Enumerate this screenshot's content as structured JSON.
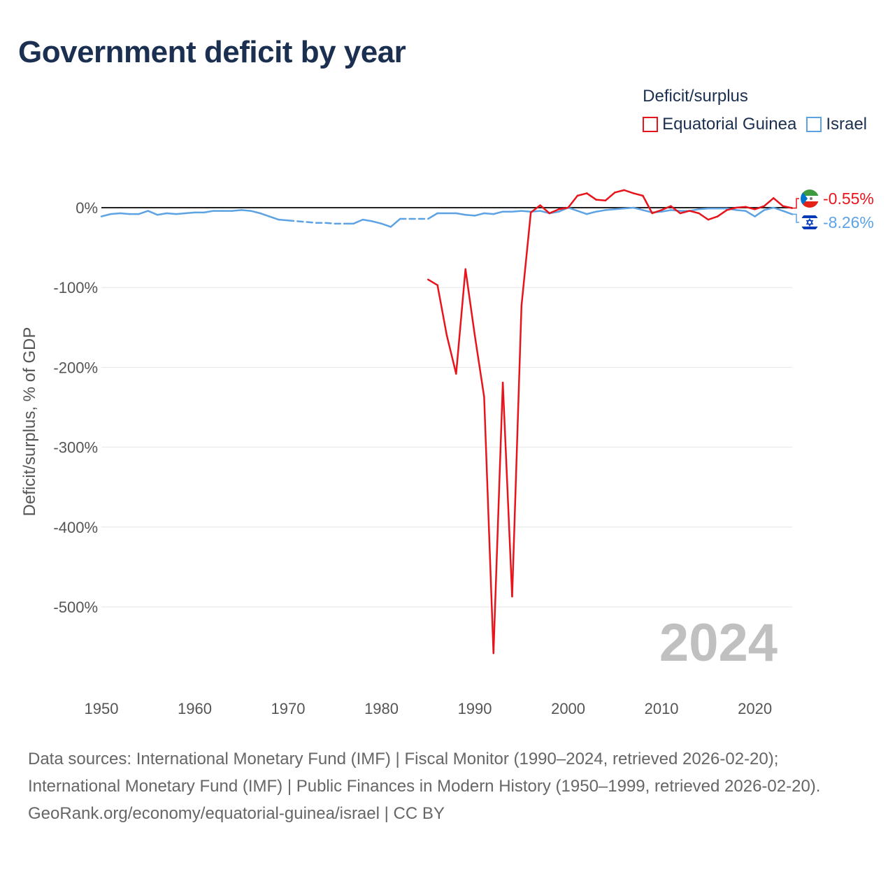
{
  "title": "Government deficit by year",
  "legend": {
    "title": "Deficit/surplus",
    "items": [
      {
        "label": "Equatorial Guinea",
        "color": "#e8141b"
      },
      {
        "label": "Israel",
        "color": "#5da3e4"
      }
    ]
  },
  "footer": {
    "sources": "Data sources: International Monetary Fund (IMF) | Fiscal Monitor (1990–2024, retrieved 2026-02-20); International Monetary Fund (IMF) | Public Finances in Modern History (1950–1999, retrieved 2026-02-20).",
    "credit": "GeoRank.org/economy/equatorial-guinea/israel | CC BY"
  },
  "chart_data": {
    "type": "line",
    "title": "Government deficit by year",
    "xlabel": "",
    "ylabel": "Deficit/surplus, % of GDP",
    "xlim": [
      1950,
      2024
    ],
    "ylim": [
      -600,
      20
    ],
    "year_watermark": "2024",
    "x_ticks": [
      {
        "value": 1950,
        "label": "1950"
      },
      {
        "value": 1960,
        "label": "1960"
      },
      {
        "value": 1970,
        "label": "1970"
      },
      {
        "value": 1980,
        "label": "1980"
      },
      {
        "value": 1990,
        "label": "1990"
      },
      {
        "value": 2000,
        "label": "2000"
      },
      {
        "value": 2010,
        "label": "2010"
      },
      {
        "value": 2020,
        "label": "2020"
      }
    ],
    "y_ticks": [
      {
        "value": 0,
        "label": "0%"
      },
      {
        "value": -100,
        "label": "-100%"
      },
      {
        "value": -200,
        "label": "-200%"
      },
      {
        "value": -300,
        "label": "-300%"
      },
      {
        "value": -400,
        "label": "-400%"
      },
      {
        "value": -500,
        "label": "-500%"
      }
    ],
    "series": [
      {
        "name": "Equatorial Guinea",
        "color": "#e8141b",
        "end_label": "-0.55%",
        "points": [
          [
            1985,
            -90
          ],
          [
            1986,
            -97
          ],
          [
            1987,
            -160
          ],
          [
            1988,
            -208
          ],
          [
            1989,
            -77
          ],
          [
            1990,
            -160
          ],
          [
            1991,
            -237
          ],
          [
            1992,
            -558
          ],
          [
            1993,
            -219
          ],
          [
            1994,
            -487
          ],
          [
            1995,
            -123
          ],
          [
            1996,
            -6
          ],
          [
            1997,
            3
          ],
          [
            1998,
            -7
          ],
          [
            1999,
            -2
          ],
          [
            2000,
            0
          ],
          [
            2001,
            15
          ],
          [
            2002,
            18
          ],
          [
            2003,
            10
          ],
          [
            2004,
            9
          ],
          [
            2005,
            19
          ],
          [
            2006,
            22
          ],
          [
            2007,
            18
          ],
          [
            2008,
            15
          ],
          [
            2009,
            -7
          ],
          [
            2010,
            -3
          ],
          [
            2011,
            2
          ],
          [
            2012,
            -7
          ],
          [
            2013,
            -4
          ],
          [
            2014,
            -7
          ],
          [
            2015,
            -15
          ],
          [
            2016,
            -11
          ],
          [
            2017,
            -3
          ],
          [
            2018,
            0
          ],
          [
            2019,
            1
          ],
          [
            2020,
            -2
          ],
          [
            2021,
            2
          ],
          [
            2022,
            12
          ],
          [
            2023,
            2
          ],
          [
            2024,
            -0.55
          ]
        ],
        "gaps": []
      },
      {
        "name": "Israel",
        "color": "#5da3e4",
        "end_label": "-8.26%",
        "points": [
          [
            1950,
            -11
          ],
          [
            1951,
            -8
          ],
          [
            1952,
            -7
          ],
          [
            1953,
            -8
          ],
          [
            1954,
            -8
          ],
          [
            1955,
            -4
          ],
          [
            1956,
            -9
          ],
          [
            1957,
            -7
          ],
          [
            1958,
            -8
          ],
          [
            1959,
            -7
          ],
          [
            1960,
            -6
          ],
          [
            1961,
            -6
          ],
          [
            1962,
            -4
          ],
          [
            1963,
            -4
          ],
          [
            1964,
            -4
          ],
          [
            1965,
            -3
          ],
          [
            1966,
            -4
          ],
          [
            1967,
            -7
          ],
          [
            1968,
            -11
          ],
          [
            1969,
            -15
          ],
          [
            1970,
            -16
          ],
          [
            1971,
            -17
          ],
          [
            1972,
            -18
          ],
          [
            1973,
            -19
          ],
          [
            1974,
            -19
          ],
          [
            1975,
            -20
          ],
          [
            1976,
            -20
          ],
          [
            1977,
            -20
          ],
          [
            1978,
            -15
          ],
          [
            1979,
            -17
          ],
          [
            1980,
            -20
          ],
          [
            1981,
            -24
          ],
          [
            1982,
            -14
          ],
          [
            1983,
            -14
          ],
          [
            1984,
            -14
          ],
          [
            1985,
            -14
          ],
          [
            1986,
            -7
          ],
          [
            1987,
            -7
          ],
          [
            1988,
            -7
          ],
          [
            1989,
            -9
          ],
          [
            1990,
            -10
          ],
          [
            1991,
            -7
          ],
          [
            1992,
            -8
          ],
          [
            1993,
            -5
          ],
          [
            1994,
            -5
          ],
          [
            1995,
            -4
          ],
          [
            1996,
            -5
          ],
          [
            1997,
            -4
          ],
          [
            1998,
            -7
          ],
          [
            1999,
            -5
          ],
          [
            2000,
            0
          ],
          [
            2001,
            -4
          ],
          [
            2002,
            -8
          ],
          [
            2003,
            -5
          ],
          [
            2004,
            -3
          ],
          [
            2005,
            -2
          ],
          [
            2006,
            -1
          ],
          [
            2007,
            0
          ],
          [
            2008,
            -3
          ],
          [
            2009,
            -6
          ],
          [
            2010,
            -5
          ],
          [
            2011,
            -3
          ],
          [
            2012,
            -4
          ],
          [
            2013,
            -4
          ],
          [
            2014,
            -2
          ],
          [
            2015,
            -1
          ],
          [
            2016,
            -1
          ],
          [
            2017,
            -1
          ],
          [
            2018,
            -3
          ],
          [
            2019,
            -4
          ],
          [
            2020,
            -11
          ],
          [
            2021,
            -3
          ],
          [
            2022,
            0
          ],
          [
            2023,
            -4
          ],
          [
            2024,
            -8.26
          ]
        ],
        "gaps": [
          [
            1970,
            1976
          ],
          [
            1982,
            1985
          ]
        ]
      }
    ]
  }
}
